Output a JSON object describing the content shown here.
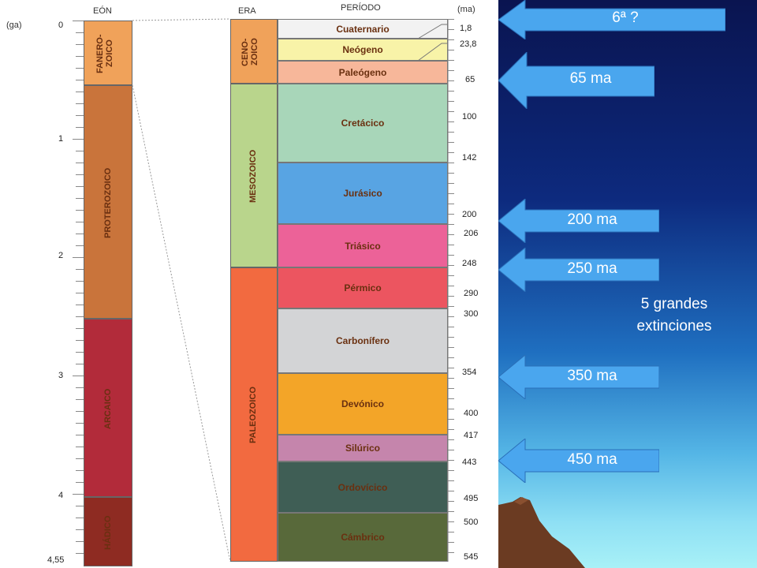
{
  "headers": {
    "unit_left": "(ga)",
    "eon": "EÓN",
    "era": "ERA",
    "period": "PERÍODO",
    "unit_right": "(ma)"
  },
  "ga_scale": [
    "0",
    "1",
    "2",
    "3",
    "4",
    "4,55"
  ],
  "eons": [
    {
      "name": "FANERO-\nZOICO",
      "color": "#f0a25a"
    },
    {
      "name": "PROTEROZOICO",
      "color": "#c9743b"
    },
    {
      "name": "ARCAICO",
      "color": "#b22b3a"
    },
    {
      "name": "HÁDICO",
      "color": "#8e2b22"
    }
  ],
  "eras": [
    {
      "name": "CENO-\nZOICO",
      "color": "#f0a25a"
    },
    {
      "name": "MESOZOICO",
      "color": "#b9d58c"
    },
    {
      "name": "PALEOZOICO",
      "color": "#f26a40"
    }
  ],
  "periods": [
    {
      "name": "Cuaternario",
      "color": "#f2f2f2"
    },
    {
      "name": "Neógeno",
      "color": "#f8f3a8"
    },
    {
      "name": "Paleógeno",
      "color": "#f7b79a"
    },
    {
      "name": "Cretácico",
      "color": "#a8d6b9"
    },
    {
      "name": "Jurásico",
      "color": "#58a4e3"
    },
    {
      "name": "Triásico",
      "color": "#ec6298"
    },
    {
      "name": "Pérmico",
      "color": "#ec5560"
    },
    {
      "name": "Carbonífero",
      "color": "#d3d4d6"
    },
    {
      "name": "Devónico",
      "color": "#f3a528"
    },
    {
      "name": "Silúrico",
      "color": "#c585ac"
    },
    {
      "name": "Ordovícico",
      "color": "#3f5e55"
    },
    {
      "name": "Cámbrico",
      "color": "#58693a"
    }
  ],
  "ma_scale": [
    "1,8",
    "23,8",
    "65",
    "100",
    "142",
    "200",
    "206",
    "248",
    "290",
    "300",
    "354",
    "400",
    "417",
    "443",
    "495",
    "500",
    "545"
  ],
  "extinctions": [
    {
      "label": "6ª ?"
    },
    {
      "label": "65 ma"
    },
    {
      "label": "200 ma"
    },
    {
      "label": "250 ma"
    },
    {
      "label": "350 ma"
    },
    {
      "label": "450 ma"
    }
  ],
  "note": "5 grandes extinciones",
  "colors": {
    "arrow": "#4aa6ee",
    "arrow_border": "#2a6fb8"
  }
}
